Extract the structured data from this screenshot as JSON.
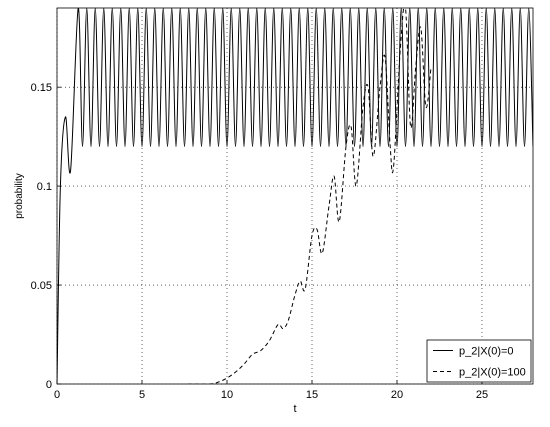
{
  "chart_data": {
    "type": "line",
    "xlabel": "t",
    "ylabel": "probability",
    "xlim": [
      0,
      28
    ],
    "ylim": [
      0,
      0.19
    ],
    "xticks": [
      0,
      5,
      10,
      15,
      20,
      25
    ],
    "yticks": [
      0,
      0.05,
      0.1,
      0.15
    ],
    "grid": true,
    "legend": "lower right",
    "series": [
      {
        "name": "p_2|X(0)=0",
        "color": "#000000",
        "dash": "solid",
        "x": [
          0,
          0.2,
          0.5,
          0.8,
          1.25,
          1.5,
          1.75,
          2,
          2.25,
          2.5,
          2.75,
          3,
          3.25,
          3.5,
          3.75,
          4,
          4.25,
          4.5,
          4.75,
          5,
          5.25,
          5.5,
          5.75,
          6,
          6.25,
          6.5,
          6.75,
          7,
          7.25,
          7.5,
          7.75,
          8,
          8.25,
          8.5,
          8.75,
          9,
          9.25,
          9.5,
          9.75,
          10,
          10.25,
          10.5,
          10.75,
          11,
          11.25,
          11.5,
          11.75,
          12,
          12.25,
          12.5,
          12.75,
          13,
          13.25,
          13.5,
          13.75,
          14,
          14.25,
          14.5,
          14.75,
          15,
          15.25,
          15.5,
          15.75,
          16,
          16.25,
          16.5,
          16.75,
          17,
          17.25,
          17.5,
          17.75,
          18,
          18.25,
          18.5,
          18.75,
          19,
          19.25,
          19.5,
          19.75,
          20,
          20.25,
          20.5,
          20.75,
          21,
          21.25,
          21.5,
          21.75,
          22,
          22.25,
          22.5,
          22.75,
          23,
          23.25,
          23.5,
          23.75,
          24,
          24.25,
          24.5,
          24.75,
          25,
          25.25,
          25.5,
          25.75,
          26,
          26.25,
          26.5,
          26.75,
          27,
          27.25,
          27.5,
          27.75,
          28
        ],
        "values": [
          0,
          0.1,
          0.135,
          0.108,
          0.19,
          0.12,
          0.19,
          0.12,
          0.19,
          0.12,
          0.19,
          0.12,
          0.19,
          0.12,
          0.19,
          0.12,
          0.19,
          0.12,
          0.19,
          0.12,
          0.19,
          0.12,
          0.19,
          0.12,
          0.19,
          0.12,
          0.19,
          0.12,
          0.19,
          0.12,
          0.19,
          0.12,
          0.19,
          0.12,
          0.19,
          0.12,
          0.19,
          0.12,
          0.19,
          0.12,
          0.19,
          0.12,
          0.19,
          0.12,
          0.19,
          0.12,
          0.19,
          0.12,
          0.19,
          0.12,
          0.19,
          0.12,
          0.19,
          0.12,
          0.19,
          0.12,
          0.19,
          0.12,
          0.19,
          0.12,
          0.19,
          0.12,
          0.19,
          0.12,
          0.19,
          0.12,
          0.19,
          0.12,
          0.19,
          0.12,
          0.19,
          0.12,
          0.19,
          0.12,
          0.19,
          0.12,
          0.19,
          0.12,
          0.19,
          0.12,
          0.19,
          0.12,
          0.19,
          0.12,
          0.19,
          0.12,
          0.19,
          0.12,
          0.19,
          0.12,
          0.19,
          0.12,
          0.19,
          0.12,
          0.19,
          0.12,
          0.19,
          0.12,
          0.19,
          0.12,
          0.19,
          0.12,
          0.19,
          0.12,
          0.19,
          0.12,
          0.19,
          0.12,
          0.19,
          0.12,
          0.19,
          0.12
        ]
      },
      {
        "name": "p_2|X(0)=100",
        "color": "#000000",
        "dash": "dashed",
        "x": [
          7.7,
          9,
          9.5,
          10,
          10.5,
          11,
          11.5,
          12,
          12.5,
          13,
          13.3,
          13.6,
          14,
          14.3,
          14.6,
          15,
          15.3,
          15.6,
          16,
          16.3,
          16.6,
          17,
          17.3,
          17.6,
          18,
          18.3,
          18.6,
          19,
          19.3,
          19.6,
          19.8,
          20.2,
          20.5,
          20.8,
          21.1,
          21.4,
          21.7,
          22
        ],
        "values": [
          0,
          0,
          0.001,
          0.003,
          0.006,
          0.01,
          0.015,
          0.017,
          0.022,
          0.03,
          0.028,
          0.032,
          0.045,
          0.052,
          0.048,
          0.075,
          0.078,
          0.066,
          0.09,
          0.105,
          0.082,
          0.12,
          0.13,
          0.1,
          0.14,
          0.15,
          0.115,
          0.15,
          0.165,
          0.12,
          0.11,
          0.17,
          0.19,
          0.13,
          0.16,
          0.18,
          0.14,
          0.16
        ]
      }
    ]
  }
}
